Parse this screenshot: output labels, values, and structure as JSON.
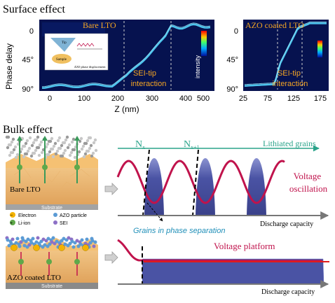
{
  "surface": {
    "title": "Surface effect",
    "ylabel": "Phase delay",
    "xlabel": "Z (nm)",
    "left_plot": {
      "label": "Bare LTO",
      "annotation": "SEI-tip\ninteraction",
      "colorbar_label": "intensity",
      "x_ticks": [
        "0",
        "100",
        "200",
        "300",
        "400",
        "500"
      ],
      "y_ticks": [
        "0",
        "45°",
        "90°"
      ]
    },
    "right_plot": {
      "label": "AZO coated LTO",
      "annotation": "SEI-tip\ninteraction",
      "x_ticks": [
        "25",
        "75",
        "125",
        "175"
      ],
      "y_ticks": [
        "0",
        "45°",
        "90°"
      ]
    },
    "inset": {
      "tip_label": "Tip",
      "sample_label": "Sample",
      "caption": "ΔX0 phase displacement"
    }
  },
  "bulk": {
    "title": "Bulk effect",
    "top_panel": {
      "sample_label": "Bare LTO",
      "n_label_1": "N",
      "n_sub_1": "x",
      "n_label_2": "N",
      "n_sub_2": "x+1",
      "grains_label": "Lithiated grains",
      "curve_label": "Voltage\noscillation",
      "phase_sep_label": "Grains in phase separation",
      "axis_label": "Discharge capacity",
      "substrate": "Substrate"
    },
    "legend": {
      "electron": "Electron",
      "liion": "Li-ion",
      "azo": "AZO particle",
      "sei": "SEI"
    },
    "bottom_panel": {
      "sample_label": "AZO coated LTO",
      "curve_label": "Voltage platform",
      "axis_label": "Discharge capacity",
      "substrate": "Substrate"
    }
  },
  "colors": {
    "crimson": "#c0134c",
    "teal": "#2aa38a",
    "navy": "#1f2a6e",
    "grain_fill": "#4a53a4",
    "plot_bg": "#06124f",
    "platform_red": "#e01b1b",
    "orange": "#f5c173",
    "label_orange": "#f6a623"
  }
}
